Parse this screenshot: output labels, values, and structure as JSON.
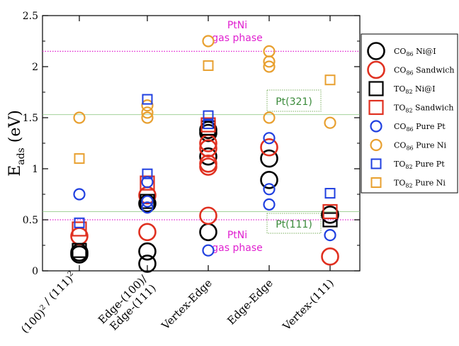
{
  "chart_data": {
    "type": "scatter",
    "ylabel_main": "E",
    "ylabel_sub": "ads",
    "ylabel_unit": " (eV)",
    "ylim": [
      0,
      2.5
    ],
    "yticks": [
      "0",
      "0.5",
      "1",
      "1.5",
      "2",
      "2.5"
    ],
    "ytick_values": [
      0,
      0.5,
      1,
      1.5,
      2,
      2.5
    ],
    "categories": [
      {
        "line1": "(100)",
        "sup1": "2",
        "line2": " / (111)",
        "sup2": "2"
      },
      {
        "line1": "Edge-(100)/",
        "line2": "Edge-(111)"
      },
      {
        "line1": "Vertex-Edge",
        "line2": ""
      },
      {
        "line1": "Edge-Edge",
        "line2": ""
      },
      {
        "line1": "Vertex-(111)",
        "line2": ""
      }
    ],
    "reference_lines": [
      {
        "y": 2.15,
        "color": "#e020d0",
        "style": "dotted"
      },
      {
        "y": 1.53,
        "color": "#7cc070",
        "style": "solid"
      },
      {
        "y": 0.58,
        "color": "#7cc070",
        "style": "solid"
      },
      {
        "y": 0.5,
        "color": "#e020d0",
        "style": "dotted"
      }
    ],
    "annotations": {
      "ptni_top_1": "PtNi",
      "ptni_top_2": "gas phase",
      "ptni_bottom_1": "PtNi",
      "ptni_bottom_2": "gas phase",
      "pt321": "Pt(321)",
      "pt111": "Pt(111)"
    },
    "series": [
      {
        "name_main": "CO",
        "name_sub": "86",
        "name_rest": " Ni@I",
        "marker": "circle",
        "size": "large",
        "color": "#000000",
        "points": [
          [
            0,
            0.18
          ],
          [
            0,
            0.16
          ],
          [
            1,
            0.66
          ],
          [
            1,
            0.19
          ],
          [
            1,
            0.07
          ],
          [
            2,
            1.38
          ],
          [
            2,
            1.35
          ],
          [
            2,
            1.12
          ],
          [
            2,
            0.38
          ],
          [
            3,
            1.1
          ],
          [
            3,
            0.89
          ],
          [
            4,
            0.55
          ]
        ]
      },
      {
        "name_main": "CO",
        "name_sub": "86",
        "name_rest": " Sandwich",
        "marker": "circle",
        "size": "large",
        "color": "#e03020",
        "points": [
          [
            0,
            0.34
          ],
          [
            1,
            0.74
          ],
          [
            1,
            0.38
          ],
          [
            2,
            1.25
          ],
          [
            2,
            1.2
          ],
          [
            2,
            1.05
          ],
          [
            2,
            1.02
          ],
          [
            2,
            0.54
          ],
          [
            3,
            1.21
          ],
          [
            4,
            0.14
          ]
        ]
      },
      {
        "name_main": "TO",
        "name_sub": "82",
        "name_rest": " Ni@I",
        "marker": "square",
        "size": "large",
        "color": "#000000",
        "points": [
          [
            0,
            0.2
          ],
          [
            1,
            0.68
          ],
          [
            2,
            1.4
          ],
          [
            4,
            0.5
          ]
        ]
      },
      {
        "name_main": "TO",
        "name_sub": "82",
        "name_rest": " Sandwich",
        "marker": "square",
        "size": "large",
        "color": "#e03020",
        "points": [
          [
            0,
            0.41
          ],
          [
            1,
            0.86
          ],
          [
            2,
            1.43
          ],
          [
            4,
            0.58
          ]
        ]
      },
      {
        "name_main": "CO",
        "name_sub": "86",
        "name_rest": " Pure Pt",
        "marker": "circle",
        "size": "small",
        "color": "#2040e0",
        "points": [
          [
            0,
            0.75
          ],
          [
            1,
            0.87
          ],
          [
            1,
            0.68
          ],
          [
            1,
            0.62
          ],
          [
            2,
            0.2
          ],
          [
            3,
            1.3
          ],
          [
            3,
            0.8
          ],
          [
            3,
            0.65
          ],
          [
            4,
            0.35
          ]
        ]
      },
      {
        "name_main": "CO",
        "name_sub": "86",
        "name_rest": " Pure Ni",
        "marker": "circle",
        "size": "small",
        "color": "#e8a030",
        "points": [
          [
            0,
            1.5
          ],
          [
            1,
            1.62
          ],
          [
            1,
            1.55
          ],
          [
            1,
            1.5
          ],
          [
            2,
            2.25
          ],
          [
            3,
            2.15
          ],
          [
            3,
            2.05
          ],
          [
            3,
            2.0
          ],
          [
            3,
            1.5
          ],
          [
            4,
            1.45
          ]
        ]
      },
      {
        "name_main": "TO",
        "name_sub": "82",
        "name_rest": " Pure Pt",
        "marker": "square",
        "size": "small",
        "color": "#2040e0",
        "points": [
          [
            0,
            0.47
          ],
          [
            1,
            1.68
          ],
          [
            1,
            0.95
          ],
          [
            2,
            1.52
          ],
          [
            2,
            1.44
          ],
          [
            4,
            0.76
          ]
        ]
      },
      {
        "name_main": "TO",
        "name_sub": "82",
        "name_rest": " Pure Ni",
        "marker": "square",
        "size": "small",
        "color": "#e8a030",
        "points": [
          [
            0,
            1.1
          ],
          [
            2,
            2.01
          ],
          [
            4,
            1.87
          ]
        ]
      }
    ]
  }
}
